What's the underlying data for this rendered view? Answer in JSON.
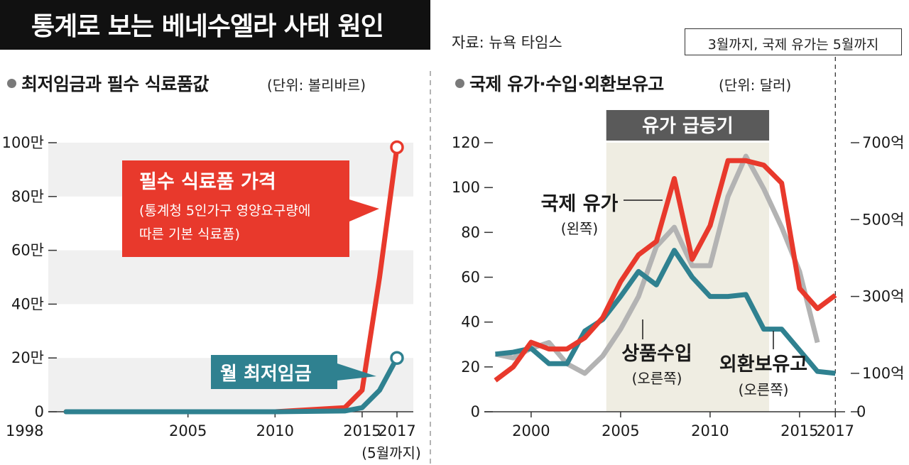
{
  "header": {
    "title": "통계로 보는 베네수엘라 사태 원인",
    "source": "자료: 뉴욕 타임스",
    "note": "3월까지, 국제 유가는 5월까지"
  },
  "colors": {
    "red": "#e8392c",
    "teal": "#2f8190",
    "gray": "#b3b3b3",
    "band": "#efede2",
    "band_label_bg": "#5a5a5a"
  },
  "left_panel": {
    "title": "최저임금과 필수 식료품값",
    "unit": "(단위: 볼리바르)",
    "x_ticks": [
      "1998",
      "2005",
      "2010",
      "2015",
      "2017"
    ],
    "x_note": "(5월까지)",
    "y_ticks": [
      "0",
      "20만",
      "40만",
      "60만",
      "80만",
      "100만"
    ],
    "food_label": {
      "title": "필수 식료품 가격",
      "line1": "(통계청 5인가구 영양요구량에",
      "line2": "따른 기본 식료품)"
    },
    "wage_label": "월 최저임금"
  },
  "right_panel": {
    "title": "국제 유가·수입·외환보유고",
    "unit": "(단위: 달러)",
    "band_label": "유가 급등기",
    "x_ticks": [
      "2000",
      "2005",
      "2010",
      "2015",
      "2017"
    ],
    "y_left_ticks": [
      "0",
      "20",
      "40",
      "60",
      "80",
      "100",
      "120"
    ],
    "y_right_ticks": [
      "0",
      "100억",
      "300억",
      "500억",
      "700억"
    ],
    "oil_label": "국제 유가",
    "oil_sub": "(왼쪽)",
    "import_label": "상품수입",
    "import_sub": "(오른쪽)",
    "reserve_label": "외환보유고",
    "reserve_sub": "(오른쪽)"
  },
  "chart_data": [
    {
      "type": "line",
      "title": "최저임금과 필수 식료품값",
      "unit": "볼리바르",
      "ylim": [
        0,
        1000000
      ],
      "xlim": [
        1998,
        2017
      ],
      "grid": "horizontal bands",
      "series": [
        {
          "name": "필수 식료품 가격",
          "color": "#e8392c",
          "x": [
            1998,
            2005,
            2010,
            2014,
            2015,
            2016,
            2017
          ],
          "values": [
            0,
            0,
            0,
            15000,
            80000,
            500000,
            983000
          ]
        },
        {
          "name": "월 최저임금",
          "color": "#2f8190",
          "x": [
            1998,
            2005,
            2010,
            2014,
            2015,
            2016,
            2017
          ],
          "values": [
            0,
            0,
            0,
            3000,
            15000,
            80000,
            200000
          ]
        }
      ]
    },
    {
      "type": "line",
      "title": "국제 유가·수입·외환보유고",
      "unit": "달러",
      "x": [
        1998,
        1999,
        2000,
        2001,
        2002,
        2003,
        2004,
        2005,
        2006,
        2007,
        2008,
        2009,
        2010,
        2011,
        2012,
        2013,
        2014,
        2015,
        2016,
        2017
      ],
      "y_left_lim": [
        0,
        120
      ],
      "y_right_unit": "억 달러",
      "highlight_band": {
        "label": "유가 급등기",
        "from": 2004,
        "to": 2013
      },
      "series": [
        {
          "name": "국제 유가",
          "axis": "left",
          "color": "#e8392c",
          "values": [
            14,
            20,
            31,
            28,
            28,
            33,
            42,
            58,
            70,
            76,
            104,
            68,
            83,
            112,
            112,
            110,
            102,
            55,
            46,
            52
          ]
        },
        {
          "name": "상품수입",
          "axis": "right",
          "color": "#b3b3b3",
          "values": [
            150,
            140,
            165,
            180,
            125,
            100,
            145,
            215,
            300,
            430,
            480,
            380,
            380,
            560,
            665,
            580,
            480,
            365,
            180,
            null
          ]
        },
        {
          "name": "외환보유고",
          "axis": "right",
          "color": "#2f8190",
          "values": [
            150,
            155,
            165,
            125,
            125,
            210,
            240,
            300,
            365,
            330,
            420,
            350,
            300,
            300,
            305,
            215,
            215,
            160,
            105,
            100
          ]
        }
      ]
    }
  ]
}
